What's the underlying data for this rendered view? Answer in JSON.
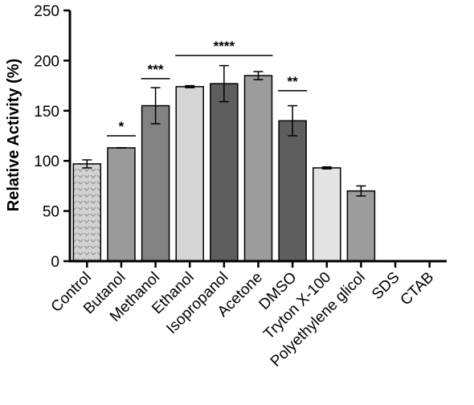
{
  "chart_data": {
    "type": "bar",
    "title": "",
    "xlabel": "",
    "ylabel": "Relative Activity (%)",
    "ylim": [
      0,
      250
    ],
    "yticks": [
      0,
      50,
      100,
      150,
      200,
      250
    ],
    "grid": false,
    "categories": [
      "Control",
      "Butanol",
      "Methanol",
      "Ethanol",
      "Isopropanol",
      "Acetone",
      "DMSO",
      "Tryton X-100",
      "Polyethylene glicol",
      "SDS",
      "CTAB"
    ],
    "values": [
      97,
      113,
      155,
      174,
      177,
      185,
      140,
      93,
      70,
      0,
      0
    ],
    "errors": [
      4,
      0,
      18,
      1,
      18,
      4,
      15,
      1,
      5,
      0,
      0
    ],
    "bar_colors": [
      "#cfcfcf",
      "#9a9a9a",
      "#828282",
      "#d6d6d6",
      "#5e5e5e",
      "#9c9c9c",
      "#5e5e5e",
      "#e4e4e4",
      "#9c9c9c",
      "#ffffff",
      "#ffffff"
    ],
    "bar_patterns": [
      "chevron",
      "",
      "",
      "",
      "",
      "",
      "",
      "",
      "",
      "",
      ""
    ],
    "significance": [
      {
        "label": "*",
        "from": 1,
        "to": 1,
        "y": 125
      },
      {
        "label": "***",
        "from": 2,
        "to": 2,
        "y": 182
      },
      {
        "label": "****",
        "from": 3,
        "to": 5,
        "y": 205
      },
      {
        "label": "**",
        "from": 6,
        "to": 6,
        "y": 170
      }
    ]
  }
}
